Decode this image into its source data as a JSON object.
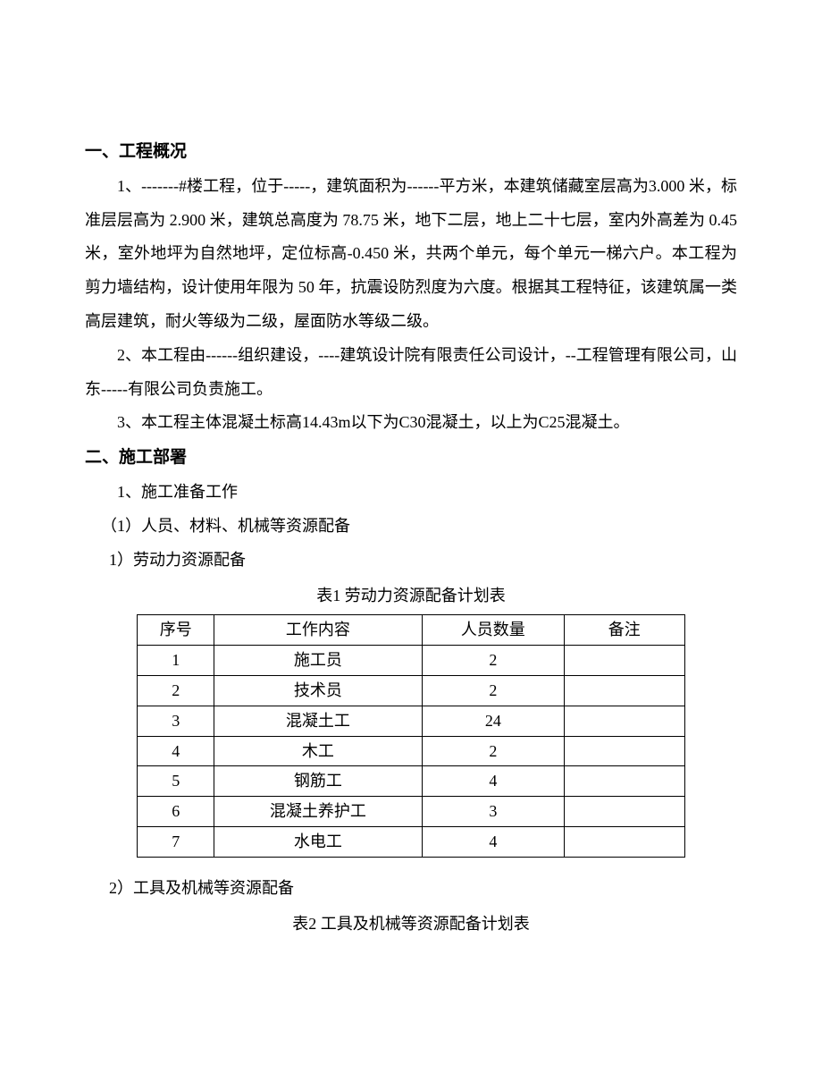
{
  "section1": {
    "heading": "一、工程概况",
    "p1": "1、-------#楼工程，位于-----，建筑面积为------平方米，本建筑储藏室层高为3.000 米，标准层层高为 2.900 米，建筑总高度为 78.75 米，地下二层，地上二十七层，室内外高差为 0.45 米，室外地坪为自然地坪，定位标高-0.450 米，共两个单元，每个单元一梯六户。本工程为剪力墙结构，设计使用年限为 50 年，抗震设防烈度为六度。根据其工程特征，该建筑属一类高层建筑，耐火等级为二级，屋面防水等级二级。",
    "p2": "2、本工程由------组织建设，----建筑设计院有限责任公司设计，--工程管理有限公司，山东-----有限公司负责施工。",
    "p3": "3、本工程主体混凝土标高14.43m以下为C30混凝土，以上为C25混凝土。"
  },
  "section2": {
    "heading": "二、施工部署",
    "item1": "1、施工准备工作",
    "item1a": "（1）人员、材料、机械等资源配备",
    "item1a1": "1）劳动力资源配备",
    "table1_caption": "表1  劳动力资源配备计划表",
    "table1": {
      "headers": [
        "序号",
        "工作内容",
        "人员数量",
        "备注"
      ],
      "rows": [
        [
          "1",
          "施工员",
          "2",
          ""
        ],
        [
          "2",
          "技术员",
          "2",
          ""
        ],
        [
          "3",
          "混凝土工",
          "24",
          ""
        ],
        [
          "4",
          "木工",
          "2",
          ""
        ],
        [
          "5",
          "钢筋工",
          "4",
          ""
        ],
        [
          "6",
          "混凝土养护工",
          "3",
          ""
        ],
        [
          "7",
          "水电工",
          "4",
          ""
        ]
      ]
    },
    "item1a2": "2）工具及机械等资源配备",
    "table2_caption": "表2  工具及机械等资源配备计划表"
  }
}
